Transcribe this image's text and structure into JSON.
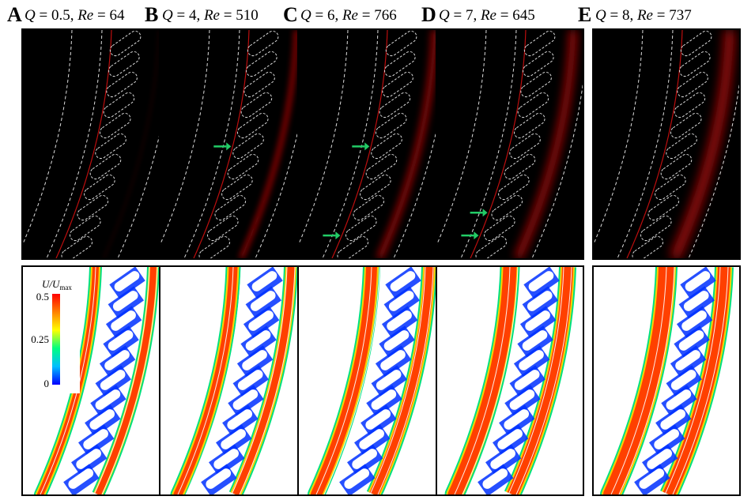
{
  "panels": [
    {
      "letter": "A",
      "q_sym": "Q",
      "q_val": "0.5",
      "re_sym": "Re",
      "re_val": "64",
      "arrows": []
    },
    {
      "letter": "B",
      "q_sym": "Q",
      "q_val": "4",
      "re_sym": "Re",
      "re_val": "510",
      "arrows": [
        {
          "y": 0.51
        }
      ]
    },
    {
      "letter": "C",
      "q_sym": "Q",
      "q_val": "6",
      "re_sym": "Re",
      "re_val": "766",
      "arrows": [
        {
          "y": 0.51
        },
        {
          "y": 0.9
        }
      ]
    },
    {
      "letter": "D",
      "q_sym": "Q",
      "q_val": "7",
      "re_sym": "Re",
      "re_val": "645",
      "arrows": [
        {
          "y": 0.8
        },
        {
          "y": 0.9
        }
      ]
    },
    {
      "letter": "E",
      "q_sym": "Q",
      "q_val": "8",
      "re_sym": "Re",
      "re_val": "737",
      "arrows": []
    }
  ],
  "colorbar": {
    "label_num": "U",
    "label_den": "U",
    "label_sub": "max",
    "ticks": [
      "0.5",
      "0.25",
      "0"
    ],
    "stops": [
      "#0000ff",
      "#00bfff",
      "#00ff80",
      "#ffff00",
      "#ff8000",
      "#ff0000"
    ]
  },
  "colors": {
    "arrow": "#22cc66",
    "dye": "#d01010",
    "outline": "#dddddd"
  }
}
